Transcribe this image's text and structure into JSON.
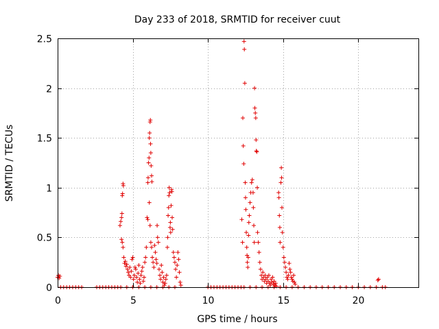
{
  "chart_data": {
    "type": "scatter",
    "title": "Day 233 of 2018, SRMTID for receiver cuut",
    "xlabel": "GPS time / hours",
    "ylabel": "SRMTID / TECUs",
    "xlim": [
      0,
      24
    ],
    "ylim": [
      0,
      2.5
    ],
    "x_ticks": [
      0,
      5,
      10,
      15,
      20
    ],
    "x_tick_labels": [
      "0",
      "5",
      "10",
      "15",
      "20"
    ],
    "y_ticks": [
      0,
      0.5,
      1,
      1.5,
      2,
      2.5
    ],
    "y_tick_labels": [
      "0",
      "0.5",
      "1",
      "1.5",
      "2",
      "2.5"
    ],
    "grid": true,
    "marker": "+",
    "color": "#e00000",
    "series": [
      {
        "name": "SRMTID",
        "points": [
          [
            0.0,
            0.1
          ],
          [
            0.05,
            0.12
          ],
          [
            0.1,
            0.09
          ],
          [
            0.15,
            0.11
          ],
          [
            0.2,
            0.0
          ],
          [
            0.4,
            0.0
          ],
          [
            0.6,
            0.0
          ],
          [
            0.8,
            0.0
          ],
          [
            1.0,
            0.0
          ],
          [
            1.2,
            0.0
          ],
          [
            1.4,
            0.0
          ],
          [
            1.6,
            0.0
          ],
          [
            2.6,
            0.0
          ],
          [
            2.8,
            0.0
          ],
          [
            3.0,
            0.0
          ],
          [
            3.2,
            0.0
          ],
          [
            3.4,
            0.0
          ],
          [
            3.6,
            0.0
          ],
          [
            3.8,
            0.0
          ],
          [
            4.0,
            0.0
          ],
          [
            4.2,
            0.0
          ],
          [
            4.15,
            0.62
          ],
          [
            4.2,
            0.66
          ],
          [
            4.25,
            0.7
          ],
          [
            4.3,
            0.92
          ],
          [
            4.32,
            0.94
          ],
          [
            4.35,
            1.04
          ],
          [
            4.37,
            1.02
          ],
          [
            4.28,
            0.74
          ],
          [
            4.25,
            0.48
          ],
          [
            4.3,
            0.45
          ],
          [
            4.35,
            0.4
          ],
          [
            4.4,
            0.3
          ],
          [
            4.45,
            0.24
          ],
          [
            4.5,
            0.26
          ],
          [
            4.55,
            0.21
          ],
          [
            4.6,
            0.23
          ],
          [
            4.65,
            0.18
          ],
          [
            4.7,
            0.15
          ],
          [
            4.75,
            0.12
          ],
          [
            4.8,
            0.2
          ],
          [
            4.85,
            0.1
          ],
          [
            4.9,
            0.16
          ],
          [
            4.95,
            0.28
          ],
          [
            5.0,
            0.3
          ],
          [
            5.05,
            0.08
          ],
          [
            5.1,
            0.12
          ],
          [
            5.15,
            0.2
          ],
          [
            5.2,
            0.18
          ],
          [
            5.25,
            0.1
          ],
          [
            5.3,
            0.05
          ],
          [
            5.35,
            0.14
          ],
          [
            5.4,
            0.22
          ],
          [
            5.45,
            0.08
          ],
          [
            5.5,
            0.04
          ],
          [
            5.55,
            0.12
          ],
          [
            5.6,
            0.16
          ],
          [
            5.65,
            0.2
          ],
          [
            5.7,
            0.06
          ],
          [
            5.75,
            0.1
          ],
          [
            5.8,
            0.25
          ],
          [
            5.85,
            0.3
          ],
          [
            5.9,
            0.4
          ],
          [
            5.95,
            0.7
          ],
          [
            6.0,
            0.68
          ],
          [
            6.0,
            1.05
          ],
          [
            6.02,
            1.1
          ],
          [
            6.05,
            1.25
          ],
          [
            6.08,
            1.3
          ],
          [
            6.1,
            1.5
          ],
          [
            6.12,
            1.55
          ],
          [
            6.15,
            1.66
          ],
          [
            6.17,
            1.68
          ],
          [
            6.18,
            1.44
          ],
          [
            6.2,
            1.35
          ],
          [
            6.22,
            1.22
          ],
          [
            6.25,
            1.12
          ],
          [
            6.27,
            1.06
          ],
          [
            6.1,
            0.85
          ],
          [
            6.15,
            0.62
          ],
          [
            6.2,
            0.45
          ],
          [
            6.25,
            0.4
          ],
          [
            6.3,
            0.3
          ],
          [
            6.35,
            0.25
          ],
          [
            6.4,
            0.2
          ],
          [
            6.45,
            0.42
          ],
          [
            6.5,
            0.35
          ],
          [
            6.55,
            0.28
          ],
          [
            6.6,
            0.24
          ],
          [
            6.62,
            0.62
          ],
          [
            6.65,
            0.5
          ],
          [
            6.7,
            0.45
          ],
          [
            6.75,
            0.18
          ],
          [
            6.8,
            0.12
          ],
          [
            6.85,
            0.08
          ],
          [
            6.9,
            0.22
          ],
          [
            6.95,
            0.15
          ],
          [
            7.0,
            0.05
          ],
          [
            7.05,
            0.1
          ],
          [
            7.1,
            0.02
          ],
          [
            7.15,
            0.04
          ],
          [
            7.2,
            0.08
          ],
          [
            7.25,
            0.12
          ],
          [
            7.3,
            0.4
          ],
          [
            7.32,
            0.5
          ],
          [
            7.35,
            0.72
          ],
          [
            7.38,
            0.8
          ],
          [
            7.4,
            0.92
          ],
          [
            7.42,
            1.0
          ],
          [
            7.45,
            0.95
          ],
          [
            7.48,
            0.6
          ],
          [
            7.5,
            0.65
          ],
          [
            7.52,
            0.55
          ],
          [
            7.55,
            0.82
          ],
          [
            7.58,
            0.98
          ],
          [
            7.6,
            0.96
          ],
          [
            7.62,
            0.7
          ],
          [
            7.65,
            0.58
          ],
          [
            7.7,
            0.35
          ],
          [
            7.75,
            0.3
          ],
          [
            7.8,
            0.25
          ],
          [
            7.85,
            0.18
          ],
          [
            7.9,
            0.1
          ],
          [
            7.95,
            0.22
          ],
          [
            8.0,
            0.35
          ],
          [
            8.05,
            0.28
          ],
          [
            8.1,
            0.15
          ],
          [
            8.15,
            0.05
          ],
          [
            8.2,
            0.02
          ],
          [
            7.8,
            0.0
          ],
          [
            7.4,
            0.0
          ],
          [
            7.0,
            0.0
          ],
          [
            6.6,
            0.0
          ],
          [
            6.2,
            0.0
          ],
          [
            5.8,
            0.0
          ],
          [
            5.4,
            0.0
          ],
          [
            5.0,
            0.0
          ],
          [
            4.6,
            0.0
          ],
          [
            10.0,
            0.0
          ],
          [
            10.2,
            0.0
          ],
          [
            10.4,
            0.0
          ],
          [
            10.6,
            0.0
          ],
          [
            10.8,
            0.0
          ],
          [
            11.0,
            0.0
          ],
          [
            11.2,
            0.0
          ],
          [
            11.4,
            0.0
          ],
          [
            11.6,
            0.0
          ],
          [
            11.8,
            0.0
          ],
          [
            12.0,
            0.0
          ],
          [
            12.2,
            0.0
          ],
          [
            12.25,
            0.68
          ],
          [
            12.3,
            0.45
          ],
          [
            12.32,
            1.7
          ],
          [
            12.35,
            1.42
          ],
          [
            12.38,
            1.24
          ],
          [
            12.4,
            2.47
          ],
          [
            12.42,
            2.39
          ],
          [
            12.45,
            2.05
          ],
          [
            12.48,
            1.05
          ],
          [
            12.5,
            0.9
          ],
          [
            12.52,
            0.78
          ],
          [
            12.55,
            0.55
          ],
          [
            12.58,
            0.4
          ],
          [
            12.6,
            0.32
          ],
          [
            12.62,
            0.25
          ],
          [
            12.65,
            0.2
          ],
          [
            12.68,
            0.3
          ],
          [
            12.7,
            0.52
          ],
          [
            12.72,
            0.65
          ],
          [
            12.75,
            0.72
          ],
          [
            12.8,
            0.85
          ],
          [
            12.85,
            0.95
          ],
          [
            12.9,
            1.05
          ],
          [
            12.95,
            1.08
          ],
          [
            13.0,
            0.95
          ],
          [
            13.02,
            0.8
          ],
          [
            13.05,
            0.62
          ],
          [
            13.08,
            0.45
          ],
          [
            13.1,
            2.0
          ],
          [
            13.12,
            1.8
          ],
          [
            13.15,
            1.75
          ],
          [
            13.18,
            1.7
          ],
          [
            13.2,
            1.48
          ],
          [
            13.22,
            1.37
          ],
          [
            13.25,
            1.36
          ],
          [
            13.28,
            1.0
          ],
          [
            13.3,
            0.55
          ],
          [
            13.35,
            0.45
          ],
          [
            13.4,
            0.35
          ],
          [
            13.45,
            0.25
          ],
          [
            13.5,
            0.18
          ],
          [
            13.55,
            0.12
          ],
          [
            13.6,
            0.08
          ],
          [
            13.65,
            0.15
          ],
          [
            13.7,
            0.1
          ],
          [
            13.75,
            0.06
          ],
          [
            13.8,
            0.12
          ],
          [
            13.85,
            0.08
          ],
          [
            13.9,
            0.04
          ],
          [
            13.95,
            0.1
          ],
          [
            14.0,
            0.06
          ],
          [
            14.05,
            0.12
          ],
          [
            14.1,
            0.04
          ],
          [
            14.15,
            0.02
          ],
          [
            14.2,
            0.08
          ],
          [
            14.25,
            0.05
          ],
          [
            14.3,
            0.1
          ],
          [
            14.35,
            0.03
          ],
          [
            14.4,
            0.06
          ],
          [
            14.45,
            0.02
          ],
          [
            14.5,
            0.04
          ],
          [
            14.55,
            0.01
          ],
          [
            14.7,
            0.95
          ],
          [
            14.72,
            0.9
          ],
          [
            14.75,
            0.72
          ],
          [
            14.78,
            0.6
          ],
          [
            14.8,
            0.45
          ],
          [
            14.85,
            1.05
          ],
          [
            14.88,
            1.2
          ],
          [
            14.9,
            1.1
          ],
          [
            14.92,
            0.8
          ],
          [
            14.95,
            0.55
          ],
          [
            15.0,
            0.4
          ],
          [
            15.05,
            0.3
          ],
          [
            15.1,
            0.25
          ],
          [
            15.15,
            0.2
          ],
          [
            15.2,
            0.15
          ],
          [
            15.25,
            0.1
          ],
          [
            15.3,
            0.08
          ],
          [
            15.35,
            0.12
          ],
          [
            15.4,
            0.24
          ],
          [
            15.45,
            0.18
          ],
          [
            15.5,
            0.15
          ],
          [
            15.55,
            0.1
          ],
          [
            15.6,
            0.08
          ],
          [
            15.65,
            0.06
          ],
          [
            15.7,
            0.12
          ],
          [
            15.75,
            0.05
          ],
          [
            15.8,
            0.03
          ],
          [
            12.4,
            0.0
          ],
          [
            12.8,
            0.0
          ],
          [
            13.2,
            0.0
          ],
          [
            13.6,
            0.0
          ],
          [
            14.0,
            0.0
          ],
          [
            14.4,
            0.0
          ],
          [
            14.8,
            0.0
          ],
          [
            15.2,
            0.0
          ],
          [
            15.6,
            0.0
          ],
          [
            16.0,
            0.0
          ],
          [
            16.4,
            0.0
          ],
          [
            16.8,
            0.0
          ],
          [
            17.2,
            0.0
          ],
          [
            17.6,
            0.0
          ],
          [
            18.0,
            0.0
          ],
          [
            18.4,
            0.0
          ],
          [
            18.8,
            0.0
          ],
          [
            19.2,
            0.0
          ],
          [
            19.6,
            0.0
          ],
          [
            20.0,
            0.0
          ],
          [
            20.4,
            0.0
          ],
          [
            20.8,
            0.0
          ],
          [
            21.2,
            0.0
          ],
          [
            21.6,
            0.0
          ],
          [
            21.8,
            0.0
          ],
          [
            21.3,
            0.07
          ],
          [
            21.35,
            0.08
          ]
        ]
      }
    ]
  }
}
